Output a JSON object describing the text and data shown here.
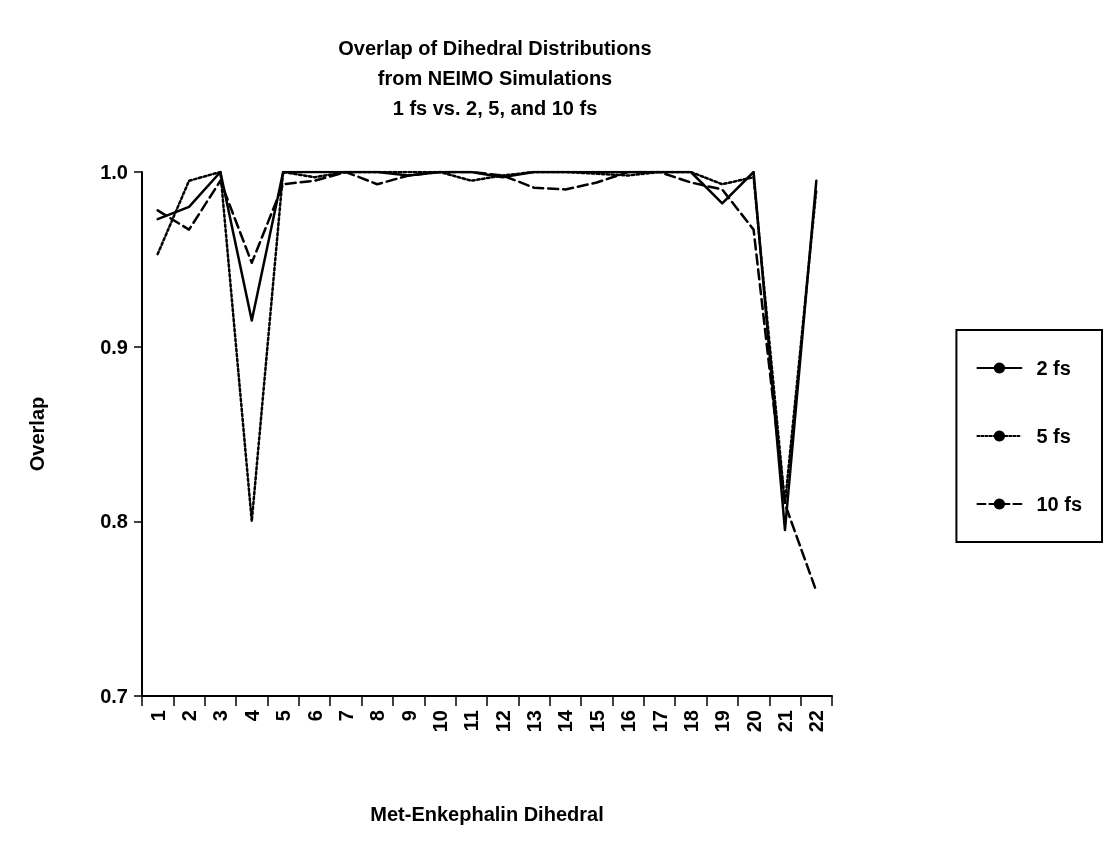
{
  "chart_data": {
    "type": "line",
    "title": "Overlap of Dihedral Distributions\nfrom NEIMO Simulations\n1 fs vs. 2, 5, and 10 fs",
    "xlabel": "Met-Enkephalin Dihedral",
    "ylabel": "Overlap",
    "categories": [
      "1",
      "2",
      "3",
      "4",
      "5",
      "6",
      "7",
      "8",
      "9",
      "10",
      "11",
      "12",
      "13",
      "14",
      "15",
      "16",
      "17",
      "18",
      "19",
      "20",
      "21",
      "22"
    ],
    "series": [
      {
        "name": "2 fs",
        "color": "#000000",
        "line_style": "solid",
        "values": [
          0.973,
          0.98,
          1.0,
          0.915,
          1.0,
          1.0,
          1.0,
          1.0,
          0.998,
          1.0,
          1.0,
          0.997,
          1.0,
          1.0,
          1.0,
          1.0,
          1.0,
          1.0,
          0.982,
          1.0,
          0.795,
          0.995
        ]
      },
      {
        "name": "5 fs",
        "color": "#000000",
        "line_style": "dotted",
        "values": [
          0.953,
          0.995,
          1.0,
          0.8,
          1.0,
          0.997,
          1.0,
          1.0,
          1.0,
          1.0,
          0.995,
          0.998,
          1.0,
          1.0,
          0.999,
          0.998,
          1.0,
          1.0,
          0.993,
          0.997,
          0.81,
          0.99
        ]
      },
      {
        "name": "10 fs",
        "color": "#000000",
        "line_style": "dashed",
        "values": [
          0.978,
          0.967,
          0.995,
          0.948,
          0.993,
          0.995,
          1.0,
          0.993,
          0.998,
          1.0,
          1.0,
          0.998,
          0.991,
          0.99,
          0.994,
          1.0,
          1.0,
          0.994,
          0.99,
          0.967,
          0.81,
          0.76
        ]
      }
    ],
    "ylim": [
      0.7,
      1.0
    ],
    "yticks": [
      0.7,
      0.8,
      0.9,
      {
        "value": 1.0,
        "label": "1.0"
      }
    ],
    "grid": false,
    "legend": "right",
    "marker": "none"
  }
}
